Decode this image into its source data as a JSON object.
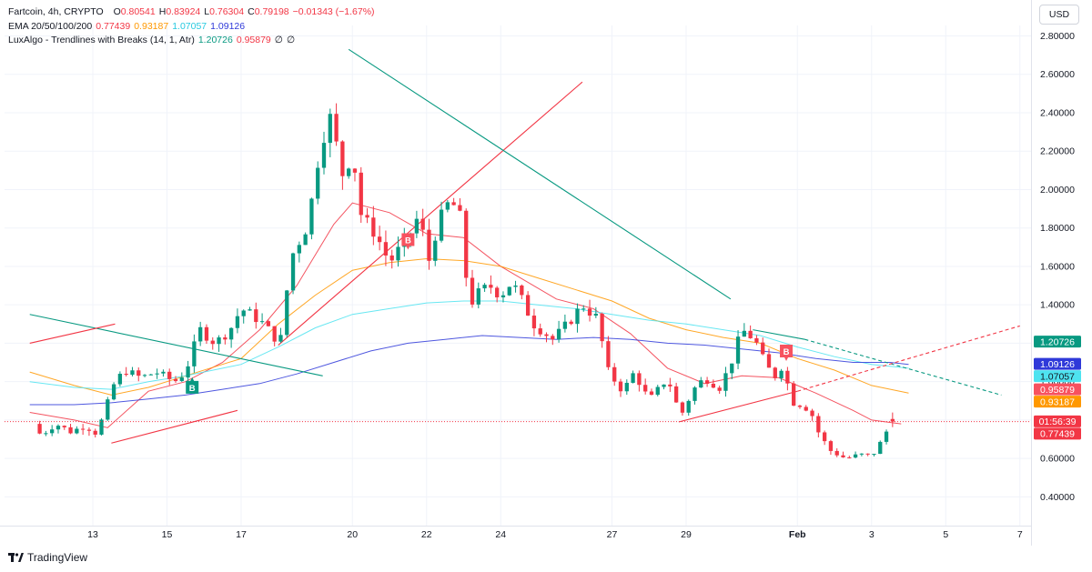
{
  "legend": {
    "symbol": "Fartcoin, 4h, CRYPTO",
    "open_label": "O",
    "open": "0.80541",
    "high_label": "H",
    "high": "0.83924",
    "low_label": "L",
    "low": "0.76304",
    "close_label": "C",
    "close": "0.79198",
    "change": "−0.01343 (−1.67%)",
    "ema_label": "EMA 20/50/100/200",
    "ema20": "0.77439",
    "ema50": "0.93187",
    "ema100": "1.07057",
    "ema200": "1.09126",
    "lux_label": "LuxAlgo - Trendlines with Breaks (14, 1, Atr)",
    "lux_v1": "1.20726",
    "lux_v2": "0.95879",
    "lux_v3": "∅",
    "lux_v4": "∅"
  },
  "currency_button": "USD",
  "footer": {
    "brand": "TradingView"
  },
  "colors": {
    "up": "#089981",
    "down": "#f23645",
    "ema20": "#f23645",
    "ema50": "#ff9800",
    "ema100": "#4ee3f0",
    "ema200": "#2f39d9",
    "trend_down": "#089981",
    "trend_up": "#f23645",
    "grid": "#f0f3fa",
    "text": "#131722"
  },
  "chart_data": {
    "type": "candlestick",
    "title": "Fartcoin, 4h, CRYPTO",
    "y_range": [
      0.3,
      2.84
    ],
    "x_range": [
      11.3,
      38.1
    ],
    "y_ticks": [
      "2.80000",
      "2.60000",
      "2.40000",
      "2.20000",
      "2.00000",
      "1.80000",
      "1.60000",
      "1.40000",
      "1.20000",
      "1.00000",
      "0.80000",
      "0.60000",
      "0.40000"
    ],
    "x_ticks": [
      {
        "day": 13,
        "label": "13"
      },
      {
        "day": 15,
        "label": "15"
      },
      {
        "day": 17,
        "label": "17"
      },
      {
        "day": 20,
        "label": "20"
      },
      {
        "day": 22,
        "label": "22"
      },
      {
        "day": 24,
        "label": "24"
      },
      {
        "day": 27,
        "label": "27"
      },
      {
        "day": 29,
        "label": "29"
      },
      {
        "day": 32,
        "label": "Feb"
      },
      {
        "day": 34,
        "label": "3"
      },
      {
        "day": 36,
        "label": "5"
      },
      {
        "day": 38,
        "label": "7"
      }
    ],
    "key_points": [
      [
        11.4,
        0.78
      ],
      [
        11.6,
        0.72
      ],
      [
        12.0,
        0.78
      ],
      [
        12.4,
        0.74
      ],
      [
        12.8,
        0.77
      ],
      [
        13.1,
        0.73
      ],
      [
        13.3,
        0.83
      ],
      [
        13.55,
        0.98
      ],
      [
        13.85,
        1.06
      ],
      [
        14.3,
        1.02
      ],
      [
        14.7,
        1.05
      ],
      [
        15.2,
        1.0
      ],
      [
        15.5,
        1.05
      ],
      [
        15.7,
        1.17
      ],
      [
        15.9,
        1.27
      ],
      [
        16.3,
        1.2
      ],
      [
        16.7,
        1.27
      ],
      [
        17.0,
        1.38
      ],
      [
        17.5,
        1.32
      ],
      [
        18.05,
        1.2
      ],
      [
        18.35,
        1.65
      ],
      [
        18.8,
        1.82
      ],
      [
        19.15,
        2.25
      ],
      [
        19.4,
        2.37
      ],
      [
        19.75,
        2.07
      ],
      [
        20.0,
        2.2
      ],
      [
        20.25,
        1.85
      ],
      [
        20.6,
        1.78
      ],
      [
        21.0,
        1.62
      ],
      [
        21.5,
        1.75
      ],
      [
        21.8,
        1.87
      ],
      [
        22.05,
        1.62
      ],
      [
        22.3,
        1.82
      ],
      [
        22.65,
        1.95
      ],
      [
        22.9,
        1.85
      ],
      [
        23.15,
        1.4
      ],
      [
        23.4,
        1.46
      ],
      [
        23.7,
        1.5
      ],
      [
        24.0,
        1.45
      ],
      [
        24.3,
        1.52
      ],
      [
        24.55,
        1.43
      ],
      [
        24.9,
        1.3
      ],
      [
        25.4,
        1.22
      ],
      [
        25.8,
        1.3
      ],
      [
        26.2,
        1.4
      ],
      [
        26.6,
        1.33
      ],
      [
        26.9,
        1.05
      ],
      [
        27.3,
        0.95
      ],
      [
        27.6,
        1.05
      ],
      [
        28.0,
        0.9
      ],
      [
        28.5,
        1.02
      ],
      [
        28.85,
        0.82
      ],
      [
        29.2,
        0.96
      ],
      [
        29.5,
        1.02
      ],
      [
        29.9,
        0.97
      ],
      [
        30.2,
        1.09
      ],
      [
        30.5,
        1.27
      ],
      [
        30.85,
        1.22
      ],
      [
        31.15,
        1.08
      ],
      [
        31.4,
        1.03
      ],
      [
        31.65,
        1.1
      ],
      [
        31.8,
        0.9
      ],
      [
        32.1,
        0.88
      ],
      [
        32.35,
        0.85
      ],
      [
        32.6,
        0.72
      ],
      [
        32.9,
        0.64
      ],
      [
        33.3,
        0.6
      ],
      [
        33.7,
        0.62
      ],
      [
        34.0,
        0.61
      ],
      [
        34.3,
        0.7
      ],
      [
        34.45,
        0.76
      ],
      [
        34.6,
        0.8
      ]
    ],
    "series": [
      {
        "name": "EMA 20",
        "value": 0.77439,
        "points": [
          [
            11.3,
            0.84
          ],
          [
            12.5,
            0.8
          ],
          [
            13.4,
            0.76
          ],
          [
            14.5,
            0.95
          ],
          [
            15.5,
            1.0
          ],
          [
            16.5,
            1.1
          ],
          [
            17.5,
            1.27
          ],
          [
            18.5,
            1.5
          ],
          [
            19.5,
            1.82
          ],
          [
            20.0,
            1.93
          ],
          [
            21.0,
            1.88
          ],
          [
            22.0,
            1.77
          ],
          [
            23.0,
            1.75
          ],
          [
            24.0,
            1.6
          ],
          [
            25.5,
            1.43
          ],
          [
            26.5,
            1.38
          ],
          [
            27.5,
            1.25
          ],
          [
            28.5,
            1.07
          ],
          [
            29.5,
            0.99
          ],
          [
            30.5,
            1.03
          ],
          [
            31.5,
            1.02
          ],
          [
            32.5,
            0.94
          ],
          [
            33.5,
            0.85
          ],
          [
            34.0,
            0.8
          ],
          [
            34.8,
            0.78
          ]
        ]
      },
      {
        "name": "EMA 50",
        "value": 0.93187,
        "points": [
          [
            11.3,
            1.05
          ],
          [
            12.5,
            0.98
          ],
          [
            13.5,
            0.93
          ],
          [
            14.5,
            0.97
          ],
          [
            15.5,
            1.03
          ],
          [
            17.0,
            1.12
          ],
          [
            18.0,
            1.3
          ],
          [
            19.0,
            1.45
          ],
          [
            20.0,
            1.58
          ],
          [
            21.0,
            1.62
          ],
          [
            22.0,
            1.64
          ],
          [
            23.0,
            1.63
          ],
          [
            24.0,
            1.6
          ],
          [
            25.0,
            1.54
          ],
          [
            26.0,
            1.48
          ],
          [
            27.0,
            1.42
          ],
          [
            28.0,
            1.33
          ],
          [
            29.0,
            1.27
          ],
          [
            30.0,
            1.23
          ],
          [
            31.0,
            1.2
          ],
          [
            32.0,
            1.12
          ],
          [
            33.0,
            1.06
          ],
          [
            34.0,
            0.98
          ],
          [
            35.0,
            0.94
          ]
        ]
      },
      {
        "name": "EMA 100",
        "value": 1.07057,
        "points": [
          [
            11.3,
            1.0
          ],
          [
            12.5,
            0.97
          ],
          [
            13.5,
            0.96
          ],
          [
            14.5,
            1.0
          ],
          [
            15.5,
            1.03
          ],
          [
            17.0,
            1.09
          ],
          [
            18.0,
            1.18
          ],
          [
            19.0,
            1.28
          ],
          [
            20.0,
            1.35
          ],
          [
            21.0,
            1.38
          ],
          [
            22.0,
            1.41
          ],
          [
            23.0,
            1.42
          ],
          [
            24.0,
            1.42
          ],
          [
            25.0,
            1.4
          ],
          [
            26.0,
            1.38
          ],
          [
            27.0,
            1.35
          ],
          [
            28.0,
            1.32
          ],
          [
            29.0,
            1.3
          ],
          [
            30.0,
            1.27
          ],
          [
            31.0,
            1.24
          ],
          [
            32.0,
            1.18
          ],
          [
            33.0,
            1.13
          ],
          [
            34.0,
            1.09
          ],
          [
            35.0,
            1.07
          ]
        ]
      },
      {
        "name": "EMA 200",
        "value": 1.09126,
        "points": [
          [
            11.3,
            0.88
          ],
          [
            12.5,
            0.88
          ],
          [
            13.5,
            0.89
          ],
          [
            14.5,
            0.91
          ],
          [
            15.5,
            0.93
          ],
          [
            16.5,
            0.96
          ],
          [
            17.5,
            0.99
          ],
          [
            18.5,
            1.04
          ],
          [
            19.5,
            1.1
          ],
          [
            20.5,
            1.16
          ],
          [
            21.5,
            1.2
          ],
          [
            22.5,
            1.22
          ],
          [
            23.5,
            1.24
          ],
          [
            24.5,
            1.23
          ],
          [
            25.5,
            1.22
          ],
          [
            26.5,
            1.23
          ],
          [
            27.5,
            1.22
          ],
          [
            28.5,
            1.2
          ],
          [
            29.5,
            1.19
          ],
          [
            30.5,
            1.17
          ],
          [
            31.5,
            1.15
          ],
          [
            32.5,
            1.12
          ],
          [
            33.5,
            1.1
          ],
          [
            34.5,
            1.1
          ],
          [
            35.0,
            1.09
          ]
        ]
      }
    ],
    "trendlines": [
      {
        "kind": "down",
        "style": "solid",
        "from": [
          11.3,
          1.35
        ],
        "to": [
          19.2,
          1.03
        ]
      },
      {
        "kind": "up",
        "style": "solid",
        "from": [
          11.3,
          1.2
        ],
        "to": [
          13.6,
          1.3
        ]
      },
      {
        "kind": "up",
        "style": "solid",
        "from": [
          13.5,
          0.68
        ],
        "to": [
          16.9,
          0.85
        ]
      },
      {
        "kind": "up",
        "style": "solid",
        "from": [
          18.0,
          1.19
        ],
        "to": [
          26.2,
          2.56
        ]
      },
      {
        "kind": "down",
        "style": "solid",
        "from": [
          19.9,
          2.73
        ],
        "to": [
          30.2,
          1.43
        ]
      },
      {
        "kind": "up",
        "style": "solid",
        "from": [
          28.8,
          0.79
        ],
        "to": [
          32.0,
          0.95
        ]
      },
      {
        "kind": "down",
        "style": "solid",
        "from": [
          30.8,
          1.27
        ],
        "to": [
          32.2,
          1.22
        ]
      },
      {
        "kind": "down",
        "style": "dashed",
        "from": [
          32.2,
          1.22
        ],
        "to": [
          37.5,
          0.93
        ]
      },
      {
        "kind": "up",
        "style": "dashed",
        "from": [
          32.0,
          0.95
        ],
        "to": [
          38.0,
          1.29
        ]
      }
    ],
    "break_labels": [
      {
        "text": "B",
        "kind": "up",
        "day": 15.68,
        "price": 0.98
      },
      {
        "text": "B",
        "kind": "down",
        "day": 21.5,
        "price": 1.73
      },
      {
        "text": "B",
        "kind": "down",
        "day": 31.7,
        "price": 1.15
      }
    ],
    "price_labels": [
      {
        "text": "1.20726",
        "value": 1.20726,
        "color": "#089981"
      },
      {
        "text": "1.09126",
        "value": 1.09126,
        "color": "#2f39d9"
      },
      {
        "text": "1.07057",
        "value": 1.07057,
        "color": "#4ee3f0"
      },
      {
        "text": "0.95879",
        "value": 0.95879,
        "color": "#f7525f"
      },
      {
        "text": "0.93187",
        "value": 0.93187,
        "color": "#ff9800"
      },
      {
        "text": "01:56:39",
        "value": 0.79198,
        "color": "#f23645"
      },
      {
        "text": "0.77439",
        "value": 0.77439,
        "color": "#f23645"
      }
    ],
    "last_close": 0.79198,
    "grid": true
  }
}
